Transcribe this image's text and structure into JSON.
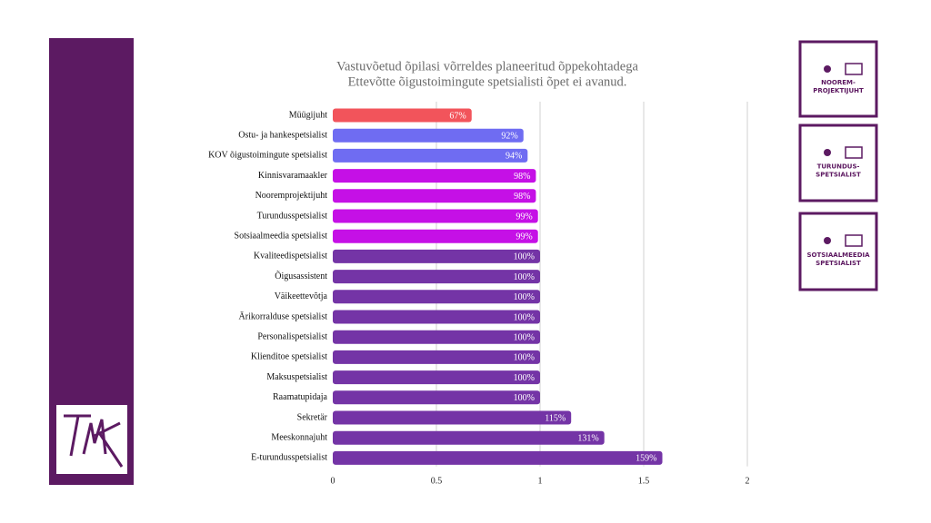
{
  "chart_data": {
    "type": "bar",
    "orientation": "horizontal",
    "title": "Vastuvõetud õpilasi võrreldes planeeritud õppekohtadega",
    "subtitle": "Ettevõtte õigustoimingute spetsialisti õpet ei avanud.",
    "categories": [
      "Müügijuht",
      "Ostu- ja hankespetsialist",
      "KOV õigustoimingute spetsialist",
      "Kinnisvaramaakler",
      "Nooremprojektijuht",
      "Turundusspetsialist",
      "Sotsiaalmeedia spetsialist",
      "Kvaliteedispetsialist",
      "Õigusassistent",
      "Väikeettevõtja",
      "Ärikorralduse spetsialist",
      "Personalispetsialist",
      "Klienditoe spetsialist",
      "Maksuspetsialist",
      "Raamatupidaja",
      "Sekretär",
      "Meeskonnajuht",
      "E-turundusspetsialist"
    ],
    "values": [
      0.67,
      0.92,
      0.94,
      0.98,
      0.98,
      0.99,
      0.99,
      1,
      1,
      1,
      1,
      1,
      1,
      1,
      1,
      1.15,
      1.31,
      1.59
    ],
    "value_labels": [
      "67%",
      "92%",
      "94%",
      "98%",
      "98%",
      "99%",
      "99%",
      "100%",
      "100%",
      "100%",
      "100%",
      "100%",
      "100%",
      "100%",
      "100%",
      "115%",
      "131%",
      "159%"
    ],
    "colors": [
      "#f2545b",
      "#6f6cf2",
      "#6f6cf2",
      "#c510e6",
      "#c510e6",
      "#c510e6",
      "#c510e6",
      "#7434a6",
      "#7434a6",
      "#7434a6",
      "#7434a6",
      "#7434a6",
      "#7434a6",
      "#7434a6",
      "#7434a6",
      "#7434a6",
      "#7434a6",
      "#7434a6"
    ],
    "xlim": [
      0,
      2
    ],
    "xticks": [
      0,
      0.5,
      1,
      1.5,
      2
    ],
    "grid": true
  },
  "badges": [
    {
      "lines": [
        "NOOREM-",
        "PROJEKTIJUHT"
      ]
    },
    {
      "lines": [
        "TURUNDUS-",
        "SPETSIALIST"
      ]
    },
    {
      "lines": [
        "SOTSIAALMEEDIA",
        "SPETSIALIST"
      ]
    }
  ]
}
